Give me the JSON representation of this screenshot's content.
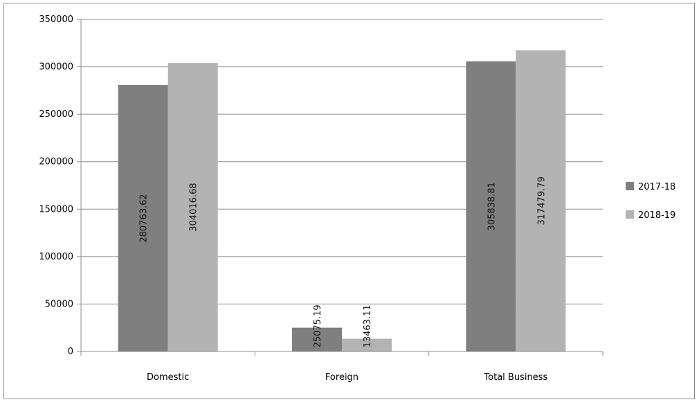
{
  "chart_data": {
    "type": "bar",
    "title": "",
    "xlabel": "",
    "ylabel": "",
    "categories": [
      "Domestic",
      "Foreign",
      "Total Business"
    ],
    "series": [
      {
        "name": "2017-18",
        "values": [
          280763.62,
          25075.19,
          305838.81
        ],
        "color": "#7f7f7f"
      },
      {
        "name": "2018-19",
        "values": [
          304016.68,
          13463.11,
          317479.79
        ],
        "color": "#b3b3b3"
      }
    ],
    "data_labels": [
      [
        "280763.62",
        "25075.19",
        "305838.81"
      ],
      [
        "304016.68",
        "13463.11",
        "317479.79"
      ]
    ],
    "ylim": [
      0,
      350000
    ],
    "yticks": [
      "0",
      "50000",
      "100000",
      "150000",
      "200000",
      "250000",
      "300000",
      "350000"
    ],
    "grid": true,
    "legend_position": "right"
  }
}
